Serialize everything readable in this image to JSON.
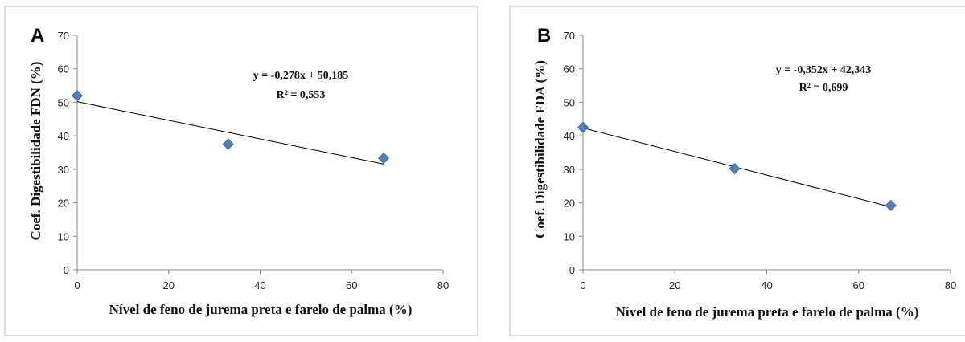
{
  "chart_data": [
    {
      "type": "scatter",
      "panel_label": "A",
      "xlabel": "Nível de feno de jurema preta e farelo de palma (%)",
      "ylabel": "Coef. Digestibilidade FDN  (%)",
      "xlim": [
        0,
        80
      ],
      "ylim": [
        0,
        70
      ],
      "xticks": [
        "0",
        "20",
        "40",
        "60",
        "80"
      ],
      "yticks": [
        "0",
        "10",
        "20",
        "30",
        "40",
        "50",
        "60",
        "70"
      ],
      "grid": false,
      "marker_color": "#4F81BD",
      "points": [
        {
          "x": 0,
          "y": 52
        },
        {
          "x": 33,
          "y": 37.5
        },
        {
          "x": 67,
          "y": 33.3
        }
      ],
      "trendline": {
        "slope": -0.278,
        "intercept": 50.185,
        "x_range": [
          0,
          67
        ]
      },
      "equation": "y = -0,278x + 50,185",
      "r2": "R² = 0,553"
    },
    {
      "type": "scatter",
      "panel_label": "B",
      "xlabel": "Nível de feno de jurema preta e farelo de palma (%)",
      "ylabel": "Coef. Digestibilidade FDA  (%)",
      "xlim": [
        0,
        80
      ],
      "ylim": [
        0,
        70
      ],
      "xticks": [
        "0",
        "20",
        "40",
        "60",
        "80"
      ],
      "yticks": [
        "0",
        "10",
        "20",
        "30",
        "40",
        "50",
        "60",
        "70"
      ],
      "grid": false,
      "marker_color": "#4F81BD",
      "points": [
        {
          "x": 0,
          "y": 42.5
        },
        {
          "x": 33,
          "y": 30.2
        },
        {
          "x": 67,
          "y": 19.2
        }
      ],
      "trendline": {
        "slope": -0.352,
        "intercept": 42.343,
        "x_range": [
          0,
          67
        ]
      },
      "equation": "y = -0,352x + 42,343",
      "r2": "R² = 0,699"
    }
  ]
}
